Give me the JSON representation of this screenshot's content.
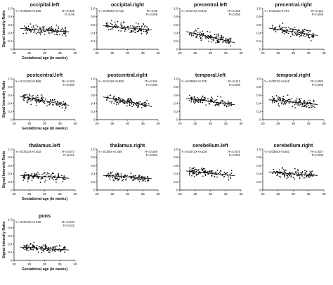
{
  "chart_data": [
    {
      "type": "scatter",
      "title": "occipital.left",
      "equation": "Y=-0.0053X+0.628",
      "r2": "R²=0.029",
      "p": "P=0.05",
      "slope": -0.0053,
      "intercept": 0.628,
      "n": 120,
      "spread": 0.08,
      "xlabel": "",
      "ylabel": "Signal Intensity Ratio",
      "xlim": [
        20,
        40
      ],
      "ylim": [
        0,
        1.0
      ],
      "xticks": [
        "20",
        "25",
        "30",
        "35",
        "40"
      ],
      "yticks": [
        "0",
        "0.2",
        "0.4",
        "0.6",
        "0.8",
        "1.0"
      ]
    },
    {
      "type": "scatter",
      "title": "occipital.right",
      "equation": "Y=-0.0066X+0.722",
      "r2": "R²=0.06",
      "p": "P=0.009",
      "slope": -0.0066,
      "intercept": 0.722,
      "n": 120,
      "spread": 0.08,
      "xlabel": "",
      "ylabel": "",
      "xlim": [
        20,
        40
      ],
      "ylim": [
        0,
        1.0
      ],
      "xticks": [
        "20",
        "25",
        "30",
        "35",
        "40"
      ],
      "yticks": [
        "0",
        "0.2",
        "0.4",
        "0.6",
        "0.8",
        "1.0"
      ]
    },
    {
      "type": "scatter",
      "title": "precentral.left",
      "equation": "Y=-0.0172X+0.813",
      "r2": "R²=0.145",
      "p": "P=0.000",
      "slope": -0.0172,
      "intercept": 0.813,
      "n": 120,
      "spread": 0.08,
      "xlabel": "",
      "ylabel": "",
      "xlim": [
        20,
        40
      ],
      "ylim": [
        0,
        1.0
      ],
      "xticks": [
        "20",
        "25",
        "30",
        "35",
        "40"
      ],
      "yticks": [
        "0",
        "0.2",
        "0.4",
        "0.6",
        "0.8",
        "1.0"
      ]
    },
    {
      "type": "scatter",
      "title": "precentral.right",
      "equation": "Y=-0.0113X+0.767",
      "r2": "R²=0.114",
      "p": "P=0.000",
      "slope": -0.0113,
      "intercept": 0.767,
      "n": 120,
      "spread": 0.08,
      "xlabel": "",
      "ylabel": "",
      "xlim": [
        20,
        40
      ],
      "ylim": [
        0,
        1.0
      ],
      "xticks": [
        "20",
        "25",
        "30",
        "35",
        "40"
      ],
      "yticks": [
        "0",
        "0.2",
        "0.4",
        "0.6",
        "0.8",
        "1.0"
      ]
    },
    {
      "type": "scatter",
      "title": "postcentral.left",
      "equation": "Y=-0.0133X+0.858",
      "r2": "R²=0.163",
      "p": "P=0.000",
      "slope": -0.0133,
      "intercept": 0.858,
      "n": 120,
      "spread": 0.08,
      "xlabel": "",
      "ylabel": "Signal Intensity Ratio",
      "xlim": [
        20,
        40
      ],
      "ylim": [
        0,
        1.0
      ],
      "xticks": [
        "20",
        "25",
        "30",
        "35",
        "40"
      ],
      "yticks": [
        "0",
        "0.2",
        "0.4",
        "0.6",
        "0.8",
        "1.0"
      ]
    },
    {
      "type": "scatter",
      "title": "postcentral.right",
      "equation": "Y=-0.0148X+0.882",
      "r2": "R²=0.261",
      "p": "P=0.000",
      "slope": -0.0148,
      "intercept": 0.882,
      "n": 120,
      "spread": 0.07,
      "xlabel": "",
      "ylabel": "",
      "xlim": [
        20,
        40
      ],
      "ylim": [
        0,
        1.0
      ],
      "xticks": [
        "20",
        "25",
        "30",
        "35",
        "40"
      ],
      "yticks": [
        "0",
        "0.2",
        "0.4",
        "0.6",
        "0.8",
        "1.0"
      ]
    },
    {
      "type": "scatter",
      "title": "temporal.left",
      "equation": "Y=-0.0095X+0.729",
      "r2": "R²=0.113",
      "p": "P=0.000",
      "slope": -0.0095,
      "intercept": 0.729,
      "n": 120,
      "spread": 0.07,
      "xlabel": "",
      "ylabel": "",
      "xlim": [
        20,
        40
      ],
      "ylim": [
        0,
        1.0
      ],
      "xticks": [
        "20",
        "25",
        "30",
        "35",
        "40"
      ],
      "yticks": [
        "0",
        "0.2",
        "0.4",
        "0.6",
        "0.8",
        "1.0"
      ]
    },
    {
      "type": "scatter",
      "title": "temporal.right",
      "equation": "Y=-0.0073X+0.648",
      "r2": "R²=0.065",
      "p": "P=0.000",
      "slope": -0.0073,
      "intercept": 0.648,
      "n": 120,
      "spread": 0.08,
      "xlabel": "",
      "ylabel": "",
      "xlim": [
        20,
        40
      ],
      "ylim": [
        0,
        1.0
      ],
      "xticks": [
        "20",
        "25",
        "30",
        "35",
        "40"
      ],
      "yticks": [
        "0",
        "0.2",
        "0.4",
        "0.6",
        "0.8",
        "1.0"
      ]
    },
    {
      "type": "scatter",
      "title": "thalamus.left",
      "equation": "Y=-0.0043X+0.453",
      "r2": "R²=0.047",
      "p": "P=0.011",
      "slope": -0.0043,
      "intercept": 0.453,
      "n": 120,
      "spread": 0.08,
      "xlabel": "",
      "ylabel": "Signal Intensity Ratio",
      "xlim": [
        20,
        40
      ],
      "ylim": [
        0,
        1.0
      ],
      "xticks": [
        "20",
        "25",
        "30",
        "35",
        "40"
      ],
      "yticks": [
        "0",
        "0.2",
        "0.4",
        "0.6",
        "0.8",
        "1.0"
      ]
    },
    {
      "type": "scatter",
      "title": "thalamus.right",
      "equation": "Y=-0.005X+0.469",
      "r2": "R²=0.059",
      "p": "P=0.004",
      "slope": -0.005,
      "intercept": 0.469,
      "n": 120,
      "spread": 0.07,
      "xlabel": "",
      "ylabel": "",
      "xlim": [
        20,
        40
      ],
      "ylim": [
        0,
        1.0
      ],
      "xticks": [
        "20",
        "25",
        "30",
        "35",
        "40"
      ],
      "yticks": [
        "0",
        "0.2",
        "0.4",
        "0.6",
        "0.8",
        "1.0"
      ]
    },
    {
      "type": "scatter",
      "title": "cerebellum.left",
      "equation": "Y=-0.0073X+0.628",
      "r2": "R²=0.075",
      "p": "P=0.001",
      "slope": -0.0073,
      "intercept": 0.628,
      "n": 120,
      "spread": 0.08,
      "xlabel": "",
      "ylabel": "",
      "xlim": [
        20,
        40
      ],
      "ylim": [
        0,
        1.0
      ],
      "xticks": [
        "20",
        "25",
        "30",
        "35",
        "40"
      ],
      "yticks": [
        "0",
        "0.2",
        "0.4",
        "0.6",
        "0.8",
        "1.0"
      ]
    },
    {
      "type": "scatter",
      "title": "cerebellum.right",
      "equation": "Y=-0.0055X+0.563",
      "r2": "R²=0.037",
      "p": "P=0.036",
      "slope": -0.0055,
      "intercept": 0.563,
      "n": 120,
      "spread": 0.08,
      "xlabel": "",
      "ylabel": "",
      "xlim": [
        20,
        40
      ],
      "ylim": [
        0,
        1.0
      ],
      "xticks": [
        "20",
        "25",
        "30",
        "35",
        "40"
      ],
      "yticks": [
        "0",
        "0.2",
        "0.4",
        "0.6",
        "0.8",
        "1.0"
      ]
    },
    {
      "type": "scatter",
      "title": "pons",
      "equation": "Y=-0.0043X+0.419",
      "r2": "R²=0.034",
      "p": "P=0.031",
      "slope": -0.0043,
      "intercept": 0.419,
      "n": 120,
      "spread": 0.07,
      "xlabel": "Gestational age (in weeks)",
      "ylabel": "Signal Intensity Ratio",
      "xlim": [
        20,
        40
      ],
      "ylim": [
        0,
        1.0
      ],
      "xticks": [
        "20",
        "25",
        "30",
        "35",
        "40"
      ],
      "yticks": [
        "0",
        "0.2",
        "0.4",
        "0.6",
        "0.8",
        "1.0"
      ]
    }
  ],
  "row_xlabels": [
    "Gestational age (in weeks)",
    "Gestational age (in weeks)",
    "Gestational age (in weeks)"
  ]
}
